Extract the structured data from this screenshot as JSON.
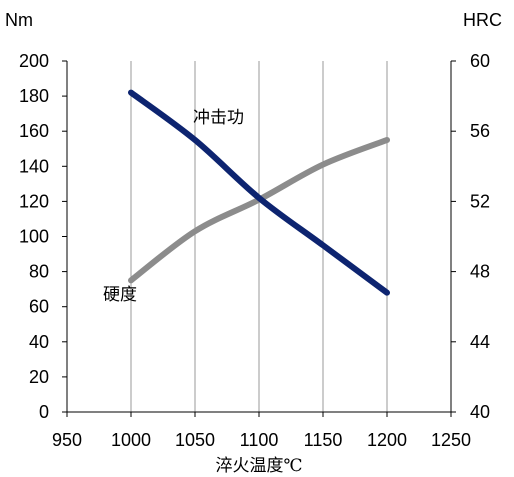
{
  "chart_data": {
    "type": "line",
    "xlabel": "淬火温度℃",
    "ylabel_left": "Nm",
    "ylabel_right": "HRC",
    "xlim": [
      950,
      1250
    ],
    "x_ticks": [
      950,
      1000,
      1050,
      1100,
      1150,
      1200,
      1250
    ],
    "ylim_left": [
      0,
      200
    ],
    "y_ticks_left": [
      0,
      20,
      40,
      60,
      80,
      100,
      120,
      140,
      160,
      180,
      200
    ],
    "ylim_right": [
      40,
      60
    ],
    "y_ticks_right": [
      40,
      44,
      48,
      52,
      56,
      60
    ],
    "grid": "vertical",
    "series": [
      {
        "name": "冲击功",
        "axis": "left",
        "color": "#0d2470",
        "x": [
          1000,
          1050,
          1100,
          1150,
          1200
        ],
        "y": [
          182,
          155,
          122,
          95,
          68
        ]
      },
      {
        "name": "硬度",
        "axis": "right",
        "color": "#8c8c8c",
        "x": [
          1000,
          1050,
          1100,
          1150,
          1200
        ],
        "y": [
          47.5,
          50.3,
          52.1,
          54.1,
          55.5
        ]
      }
    ]
  }
}
